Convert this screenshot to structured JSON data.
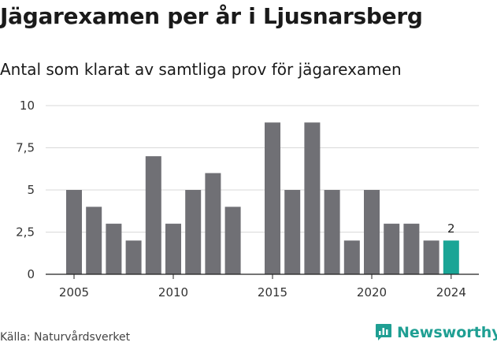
{
  "header": {
    "title": "Jägarexamen per år i Ljusnarsberg",
    "subtitle": "Antal som klarat av samtliga prov för jägarexamen"
  },
  "footer": {
    "source": "Källa: Naturvårdsverket",
    "brand": "Newsworthy",
    "brand_icon": "bar-chart-speech-icon"
  },
  "colors": {
    "bar": "#707075",
    "highlight": "#1aa596",
    "grid": "#d9d9d9",
    "brand": "#1f9f93"
  },
  "chart_data": {
    "type": "bar",
    "title": "Jägarexamen per år i Ljusnarsberg",
    "subtitle": "Antal som klarat av samtliga prov för jägarexamen",
    "x": [
      2005,
      2006,
      2007,
      2008,
      2009,
      2010,
      2011,
      2012,
      2013,
      2014,
      2015,
      2016,
      2017,
      2018,
      2019,
      2020,
      2021,
      2022,
      2023,
      2024
    ],
    "values": [
      5,
      4,
      3,
      2,
      7,
      3,
      5,
      6,
      4,
      0,
      9,
      5,
      9,
      5,
      2,
      5,
      3,
      3,
      2,
      2
    ],
    "highlight_index": 19,
    "data_labels": [
      {
        "index": 19,
        "text": "2"
      }
    ],
    "ylim": [
      0,
      10
    ],
    "y_ticks": [
      0,
      2.5,
      5,
      7.5,
      10
    ],
    "y_tick_labels": [
      "0",
      "2,5",
      "5",
      "7,5",
      "10"
    ],
    "x_ticks": [
      2005,
      2010,
      2015,
      2020,
      2024
    ],
    "x_tick_labels": [
      "2005",
      "2010",
      "2015",
      "2020",
      "2024"
    ],
    "grid": true,
    "legend": "none"
  }
}
